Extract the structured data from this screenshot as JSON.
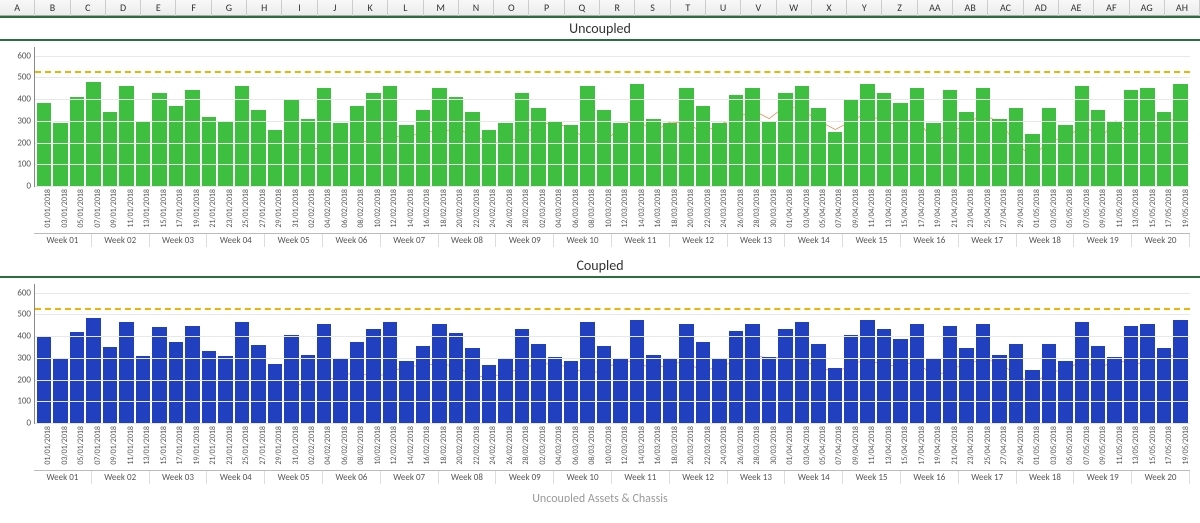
{
  "columns": [
    "A",
    "B",
    "C",
    "D",
    "E",
    "F",
    "G",
    "H",
    "I",
    "J",
    "K",
    "L",
    "M",
    "N",
    "O",
    "P",
    "Q",
    "R",
    "S",
    "T",
    "U",
    "V",
    "W",
    "X",
    "Y",
    "Z",
    "AA",
    "AB",
    "AC",
    "AD",
    "AE",
    "AF",
    "AG",
    "AH"
  ],
  "dates": [
    "01/01/2018",
    "03/01/2018",
    "05/01/2018",
    "07/01/2018",
    "09/01/2018",
    "11/01/2018",
    "13/01/2018",
    "15/01/2018",
    "17/01/2018",
    "19/01/2018",
    "21/01/2018",
    "23/01/2018",
    "25/01/2018",
    "27/01/2018",
    "29/01/2018",
    "31/01/2018",
    "02/02/2018",
    "04/02/2018",
    "06/02/2018",
    "08/02/2018",
    "10/02/2018",
    "12/02/2018",
    "14/02/2018",
    "16/02/2018",
    "18/02/2018",
    "20/02/2018",
    "22/02/2018",
    "24/02/2018",
    "26/02/2018",
    "28/02/2018",
    "02/03/2018",
    "04/03/2018",
    "06/03/2018",
    "08/03/2018",
    "10/03/2018",
    "12/03/2018",
    "14/03/2018",
    "16/03/2018",
    "18/03/2018",
    "20/03/2018",
    "22/03/2018",
    "24/03/2018",
    "26/03/2018",
    "28/03/2018",
    "30/03/2018",
    "01/04/2018",
    "03/04/2018",
    "05/04/2018",
    "07/04/2018",
    "09/04/2018",
    "11/04/2018",
    "13/04/2018",
    "15/04/2018",
    "17/04/2018",
    "19/04/2018",
    "21/04/2018",
    "23/04/2018",
    "25/04/2018",
    "27/04/2018",
    "29/04/2018",
    "01/05/2018",
    "03/05/2018",
    "05/05/2018",
    "07/05/2018",
    "09/05/2018",
    "11/05/2018",
    "13/05/2018",
    "15/05/2018",
    "17/05/2018",
    "19/05/2018"
  ],
  "weeks": [
    "Week 01",
    "Week 02",
    "Week 03",
    "Week 04",
    "Week 05",
    "Week 06",
    "Week 07",
    "Week 08",
    "Week 09",
    "Week 10",
    "Week 11",
    "Week 12",
    "Week 13",
    "Week 14",
    "Week 15",
    "Week 16",
    "Week 17",
    "Week 18",
    "Week 19",
    "Week 20"
  ],
  "ylim": [
    0,
    640
  ],
  "yticks": [
    0,
    100,
    200,
    300,
    400,
    500,
    600
  ],
  "reference_line": {
    "value": 530,
    "color": "#f0b400"
  },
  "chart1": {
    "title": "Uncoupled",
    "bar_color": "#3fbf3f",
    "line_color": "#e07030",
    "bars": [
      380,
      290,
      410,
      480,
      340,
      460,
      300,
      430,
      370,
      440,
      320,
      300,
      460,
      350,
      260,
      400,
      310,
      450,
      290,
      370,
      430,
      460,
      280,
      350,
      450,
      410,
      340,
      260,
      290,
      430,
      360,
      300,
      280,
      460,
      350,
      290,
      470,
      310,
      290,
      450,
      370,
      290,
      420,
      450,
      300,
      430,
      460,
      360,
      250,
      400,
      470,
      430,
      380,
      450,
      290,
      440,
      340,
      450,
      310,
      360,
      240,
      360,
      280,
      460,
      350,
      300,
      440,
      450,
      340,
      470
    ],
    "line": [
      null,
      null,
      null,
      null,
      null,
      null,
      null,
      null,
      null,
      null,
      null,
      null,
      null,
      null,
      null,
      175,
      165,
      180,
      170,
      220,
      190,
      245,
      210,
      260,
      240,
      270,
      230,
      205,
      190,
      235,
      280,
      295,
      260,
      215,
      195,
      280,
      305,
      250,
      295,
      290,
      245,
      285,
      310,
      350,
      310,
      370,
      350,
      300,
      260,
      300,
      340,
      280,
      300,
      305,
      200,
      245,
      290,
      330,
      290,
      195,
      130,
      220,
      210,
      290,
      215,
      300,
      225,
      260,
      300,
      310
    ]
  },
  "chart2": {
    "title": "Coupled",
    "bar_color": "#2040c0",
    "line_color": "#e07030",
    "bars": [
      395,
      300,
      420,
      485,
      350,
      465,
      310,
      440,
      375,
      445,
      330,
      310,
      465,
      360,
      270,
      405,
      315,
      455,
      295,
      375,
      435,
      465,
      285,
      355,
      455,
      415,
      345,
      265,
      295,
      435,
      365,
      305,
      285,
      465,
      355,
      295,
      475,
      315,
      295,
      455,
      375,
      295,
      425,
      455,
      305,
      435,
      465,
      365,
      255,
      405,
      475,
      435,
      385,
      455,
      295,
      445,
      345,
      455,
      315,
      365,
      245,
      365,
      285,
      465,
      355,
      305,
      445,
      455,
      345,
      475
    ],
    "line": [
      null,
      null,
      null,
      null,
      null,
      null,
      null,
      null,
      null,
      null,
      null,
      null,
      null,
      null,
      null,
      180,
      175,
      200,
      210,
      240,
      205,
      235,
      260,
      265,
      275,
      260,
      220,
      210,
      230,
      250,
      275,
      270,
      255,
      225,
      245,
      290,
      280,
      245,
      275,
      280,
      235,
      265,
      280,
      310,
      300,
      300,
      285,
      260,
      230,
      270,
      295,
      260,
      270,
      280,
      210,
      250,
      270,
      295,
      275,
      220,
      180,
      235,
      245,
      290,
      245,
      300,
      260,
      295,
      305,
      315
    ]
  },
  "cut_title": "Uncoupled   Assets  &  Chassis",
  "background_color": "#ffffff",
  "grid_color": "#e8e8e8",
  "axis_font_size": 9
}
